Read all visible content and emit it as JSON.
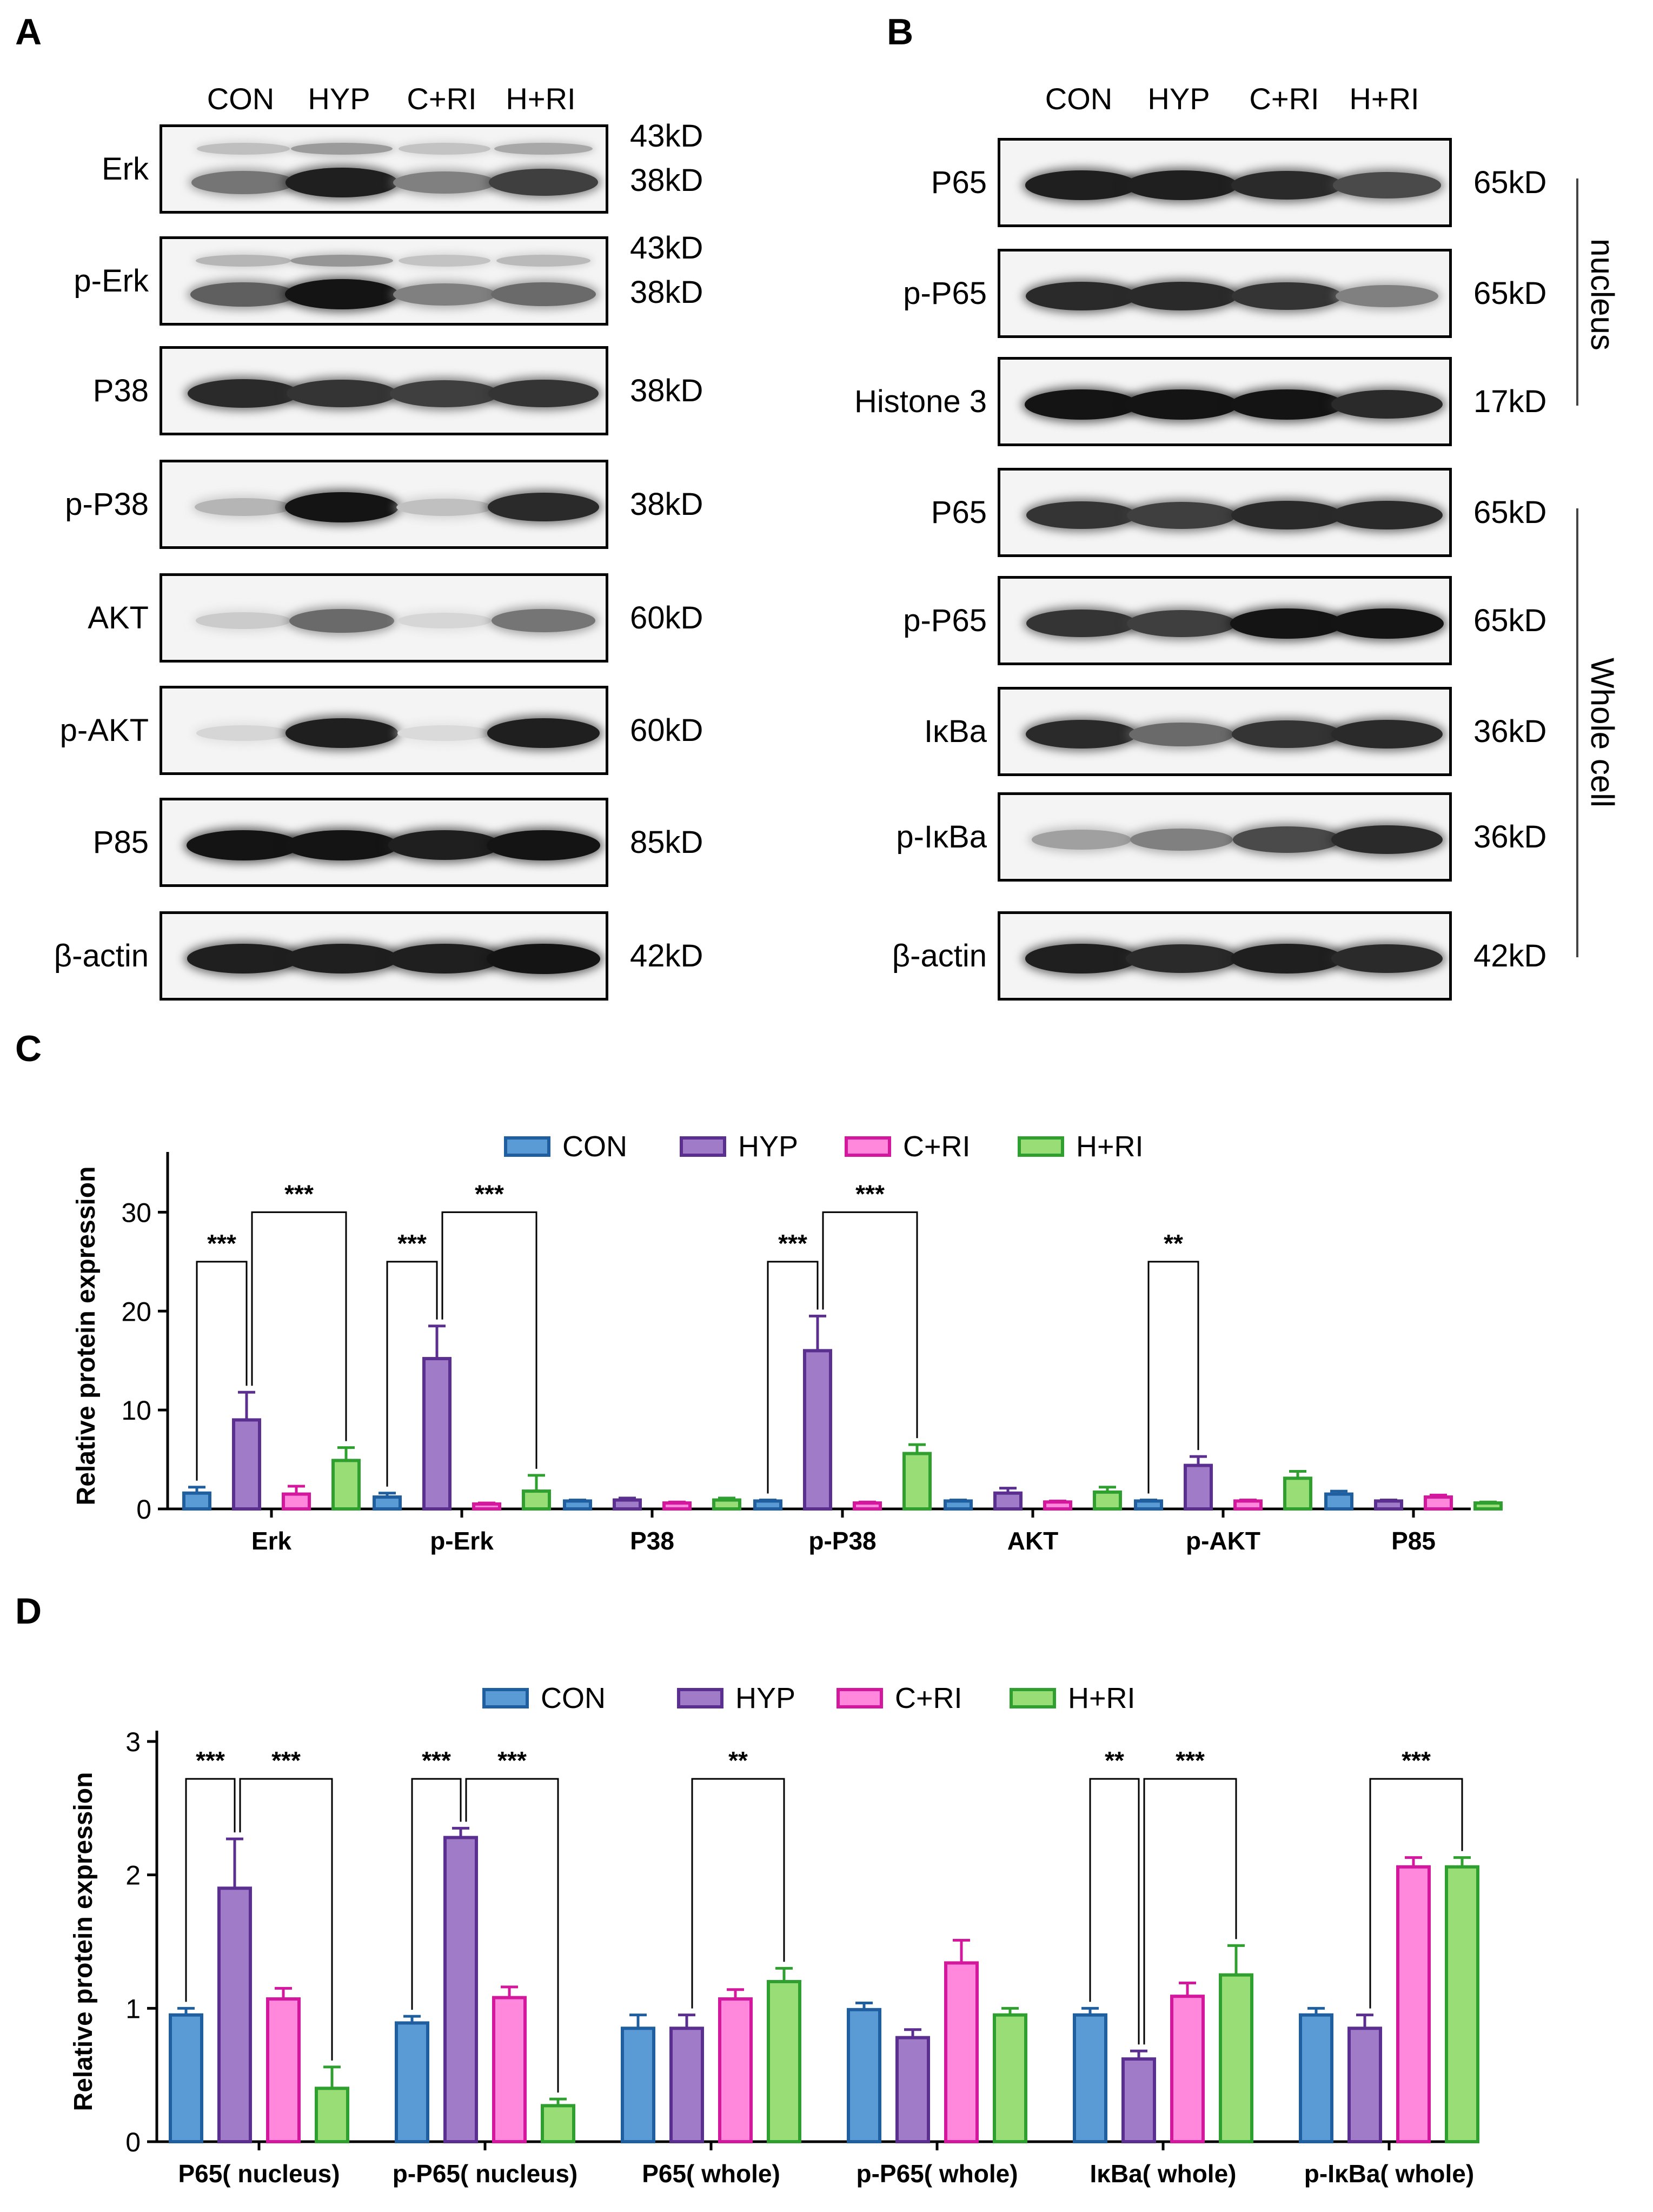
{
  "panels": {
    "a": "A",
    "b": "B",
    "c": "C",
    "d": "D"
  },
  "blot_a": {
    "lanes": [
      "CON",
      "HYP",
      "C+RI",
      "H+RI"
    ],
    "rows": [
      {
        "label": "Erk",
        "kd": [
          "43kD",
          "38kD"
        ],
        "intensity": [
          0.55,
          0.95,
          0.5,
          0.8
        ],
        "double": true
      },
      {
        "label": "p-Erk",
        "kd": [
          "43kD",
          "38kD"
        ],
        "intensity": [
          0.65,
          1.0,
          0.5,
          0.6
        ],
        "double": true
      },
      {
        "label": "P38",
        "kd": [
          "38kD"
        ],
        "intensity": [
          0.9,
          0.85,
          0.8,
          0.85
        ]
      },
      {
        "label": "p-P38",
        "kd": [
          "38kD"
        ],
        "intensity": [
          0.25,
          1.0,
          0.2,
          0.9
        ]
      },
      {
        "label": "AKT",
        "kd": [
          "60kD"
        ],
        "intensity": [
          0.15,
          0.6,
          0.1,
          0.55
        ]
      },
      {
        "label": "p-AKT",
        "kd": [
          "60kD"
        ],
        "intensity": [
          0.1,
          0.95,
          0.08,
          0.95
        ]
      },
      {
        "label": "P85",
        "kd": [
          "85kD"
        ],
        "intensity": [
          1.0,
          1.0,
          0.95,
          1.0
        ]
      },
      {
        "label": "β-actin",
        "kd": [
          "42kD"
        ],
        "intensity": [
          0.95,
          0.95,
          0.95,
          1.0
        ]
      }
    ]
  },
  "blot_b": {
    "lanes": [
      "CON",
      "HYP",
      "C+RI",
      "H+RI"
    ],
    "rows": [
      {
        "label": "P65",
        "kd": [
          "65kD"
        ],
        "intensity": [
          0.95,
          0.95,
          0.9,
          0.75
        ]
      },
      {
        "label": "p-P65",
        "kd": [
          "65kD"
        ],
        "intensity": [
          0.9,
          0.9,
          0.85,
          0.5
        ]
      },
      {
        "label": "Histone 3",
        "kd": [
          "17kD"
        ],
        "intensity": [
          1.0,
          1.0,
          1.0,
          0.9
        ]
      },
      {
        "label": "P65",
        "kd": [
          "65kD"
        ],
        "intensity": [
          0.85,
          0.8,
          0.9,
          0.9
        ]
      },
      {
        "label": "p-P65",
        "kd": [
          "65kD"
        ],
        "intensity": [
          0.85,
          0.8,
          1.0,
          1.0
        ]
      },
      {
        "label": "IκBa",
        "kd": [
          "36kD"
        ],
        "intensity": [
          0.9,
          0.6,
          0.85,
          0.9
        ]
      },
      {
        "label": "p-IκBa",
        "kd": [
          "36kD"
        ],
        "intensity": [
          0.35,
          0.5,
          0.75,
          0.9
        ]
      },
      {
        "label": "β-actin",
        "kd": [
          "42kD"
        ],
        "intensity": [
          0.95,
          0.9,
          0.95,
          0.9
        ]
      }
    ],
    "group_labels": {
      "nucleus": "nucleus",
      "whole": "Whole cell"
    }
  },
  "colors": {
    "CON": {
      "fill": "#5b9bd5",
      "stroke": "#1f5f9f"
    },
    "HYP": {
      "fill": "#a07cc8",
      "stroke": "#5b2f8f"
    },
    "C+RI": {
      "fill": "#ff88dd",
      "stroke": "#d4189e"
    },
    "H+RI": {
      "fill": "#99dd77",
      "stroke": "#2f9f2f"
    }
  },
  "chart_data": [
    {
      "type": "bar",
      "ylabel": "Relative protein expression",
      "ylim": [
        0,
        35
      ],
      "yticks": [
        0,
        10,
        20,
        30
      ],
      "legend": [
        "CON",
        "HYP",
        "C+RI",
        "H+RI"
      ],
      "legend_position": "top",
      "categories": [
        "Erk",
        "p-Erk",
        "P38",
        "p-P38",
        "AKT",
        "p-AKT",
        "P85"
      ],
      "series": [
        {
          "name": "CON",
          "values": [
            1.6,
            1.2,
            0.8,
            0.8,
            0.8,
            0.8,
            1.5
          ],
          "errors": [
            0.6,
            0.4,
            0.1,
            0.1,
            0.1,
            0.1,
            0.3
          ]
        },
        {
          "name": "HYP",
          "values": [
            9.0,
            15.2,
            0.9,
            16.0,
            1.6,
            4.4,
            0.8
          ],
          "errors": [
            2.8,
            3.3,
            0.2,
            3.5,
            0.5,
            0.9,
            0.1
          ]
        },
        {
          "name": "C+RI",
          "values": [
            1.5,
            0.5,
            0.6,
            0.6,
            0.7,
            0.8,
            1.2
          ],
          "errors": [
            0.8,
            0.1,
            0.1,
            0.1,
            0.1,
            0.1,
            0.2
          ]
        },
        {
          "name": "H+RI",
          "values": [
            4.9,
            1.8,
            0.9,
            5.6,
            1.7,
            3.1,
            0.6
          ],
          "errors": [
            1.3,
            1.6,
            0.2,
            0.9,
            0.5,
            0.7,
            0.1
          ]
        }
      ],
      "significance": [
        {
          "cat": 0,
          "from": 0,
          "to": 1,
          "label": "***",
          "y": 25
        },
        {
          "cat": 0,
          "from": 1,
          "to": 3,
          "label": "***",
          "y": 30
        },
        {
          "cat": 1,
          "from": 0,
          "to": 1,
          "label": "***",
          "y": 25
        },
        {
          "cat": 1,
          "from": 1,
          "to": 3,
          "label": "***",
          "y": 30
        },
        {
          "cat": 3,
          "from": 0,
          "to": 1,
          "label": "***",
          "y": 25
        },
        {
          "cat": 3,
          "from": 1,
          "to": 3,
          "label": "***",
          "y": 30
        },
        {
          "cat": 5,
          "from": 0,
          "to": 1,
          "label": "**",
          "y": 25
        }
      ]
    },
    {
      "type": "bar",
      "ylabel": "Relative protein expression",
      "ylim": [
        0,
        3
      ],
      "yticks": [
        0,
        1,
        2,
        3
      ],
      "legend": [
        "CON",
        "HYP",
        "C+RI",
        "H+RI"
      ],
      "legend_position": "top",
      "categories": [
        "P65( nucleus)",
        "p-P65( nucleus)",
        "P65( whole)",
        "p-P65( whole)",
        "IκBa( whole)",
        "p-IκBa( whole)"
      ],
      "series": [
        {
          "name": "CON",
          "values": [
            0.95,
            0.89,
            0.85,
            0.99,
            0.95,
            0.95
          ],
          "errors": [
            0.05,
            0.05,
            0.1,
            0.05,
            0.05,
            0.05
          ]
        },
        {
          "name": "HYP",
          "values": [
            1.9,
            2.28,
            0.85,
            0.78,
            0.62,
            0.85
          ],
          "errors": [
            0.37,
            0.07,
            0.1,
            0.06,
            0.06,
            0.1
          ]
        },
        {
          "name": "C+RI",
          "values": [
            1.07,
            1.08,
            1.07,
            1.34,
            1.09,
            2.06
          ],
          "errors": [
            0.08,
            0.08,
            0.07,
            0.17,
            0.1,
            0.07
          ]
        },
        {
          "name": "H+RI",
          "values": [
            0.4,
            0.27,
            1.2,
            0.95,
            1.25,
            2.06
          ],
          "errors": [
            0.16,
            0.05,
            0.1,
            0.05,
            0.22,
            0.07
          ]
        }
      ],
      "significance": [
        {
          "cat": 0,
          "from": 0,
          "to": 1,
          "label": "***",
          "y": 2.72
        },
        {
          "cat": 0,
          "from": 1,
          "to": 3,
          "label": "***",
          "y": 2.72
        },
        {
          "cat": 1,
          "from": 0,
          "to": 1,
          "label": "***",
          "y": 2.72
        },
        {
          "cat": 1,
          "from": 1,
          "to": 3,
          "label": "***",
          "y": 2.72
        },
        {
          "cat": 2,
          "from": 1,
          "to": 3,
          "label": "**",
          "y": 2.72
        },
        {
          "cat": 4,
          "from": 0,
          "to": 1,
          "label": "**",
          "y": 2.72
        },
        {
          "cat": 4,
          "from": 1,
          "to": 3,
          "label": "***",
          "y": 2.72
        },
        {
          "cat": 5,
          "from": 1,
          "to": 3,
          "label": "***",
          "y": 2.72
        }
      ]
    }
  ]
}
